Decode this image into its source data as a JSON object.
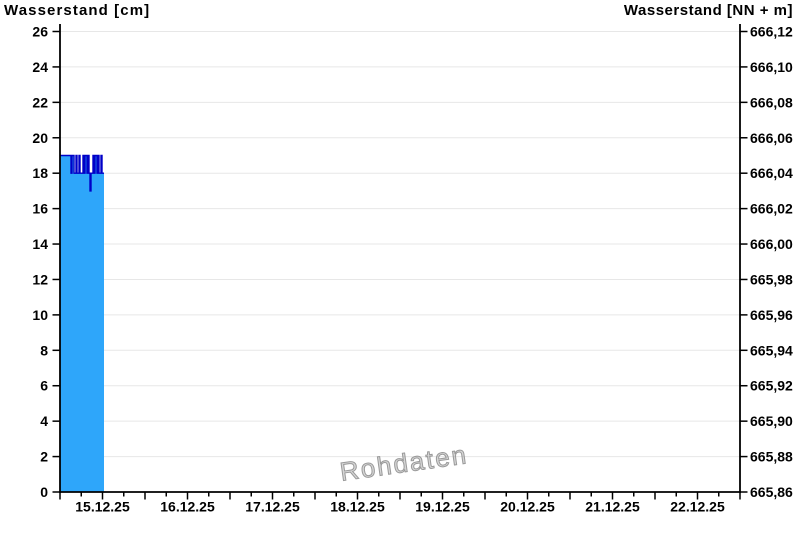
{
  "chart_data": {
    "type": "area",
    "title_left": "Wasserstand [cm]",
    "title_right": "Wasserstand [NN + m]",
    "watermark": "Rohdaten",
    "x_axis": {
      "labels": [
        "15.12.25",
        "16.12.25",
        "17.12.25",
        "18.12.25",
        "19.12.25",
        "20.12.25",
        "21.12.25",
        "22.12.25"
      ],
      "range_days": 8,
      "minor_tick_hours": 6,
      "major_tick_hours": 12,
      "grid": false
    },
    "y_left": {
      "title": "Wasserstand [cm]",
      "min": 0,
      "max": 26,
      "step": 2,
      "tick_labels": [
        "0",
        "2",
        "4",
        "6",
        "8",
        "10",
        "12",
        "14",
        "16",
        "18",
        "20",
        "22",
        "24",
        "26"
      ],
      "grid": true
    },
    "y_right": {
      "title": "Wasserstand [NN + m]",
      "min_label": "665,86",
      "max_label": "666,12",
      "step_label": "0,02",
      "tick_labels": [
        "665,86",
        "665,88",
        "665,90",
        "665,92",
        "665,94",
        "665,96",
        "665,98",
        "666,00",
        "666,02",
        "666,04",
        "666,06",
        "666,08",
        "666,10",
        "666,12"
      ]
    },
    "series": [
      {
        "name": "Wasserstand",
        "unit": "cm",
        "start_date": "15.12.25",
        "line_color": "#0000c8",
        "fill_color": "#2ea6fa",
        "points_t_hours_cm": [
          [
            0,
            19
          ],
          [
            3.11,
            19
          ],
          [
            3.11,
            18
          ],
          [
            3.39,
            18
          ],
          [
            3.39,
            19
          ],
          [
            3.95,
            19
          ],
          [
            3.95,
            18
          ],
          [
            4.52,
            18
          ],
          [
            4.52,
            19
          ],
          [
            4.8,
            19
          ],
          [
            4.8,
            18
          ],
          [
            5.36,
            18
          ],
          [
            5.36,
            19
          ],
          [
            5.65,
            19
          ],
          [
            5.65,
            18
          ],
          [
            6.49,
            18
          ],
          [
            6.49,
            19
          ],
          [
            6.78,
            19
          ],
          [
            6.78,
            18
          ],
          [
            7.06,
            18
          ],
          [
            7.06,
            19
          ],
          [
            7.62,
            19
          ],
          [
            7.62,
            18
          ],
          [
            7.91,
            18
          ],
          [
            7.91,
            19
          ],
          [
            8.19,
            19
          ],
          [
            8.19,
            18
          ],
          [
            8.47,
            18
          ],
          [
            8.47,
            17
          ],
          [
            8.75,
            17
          ],
          [
            8.75,
            18
          ],
          [
            9.32,
            18
          ],
          [
            9.32,
            19
          ],
          [
            9.6,
            19
          ],
          [
            9.6,
            18
          ],
          [
            9.88,
            18
          ],
          [
            9.88,
            19
          ],
          [
            10.45,
            19
          ],
          [
            10.45,
            18
          ],
          [
            10.73,
            18
          ],
          [
            10.73,
            19
          ],
          [
            11.01,
            19
          ],
          [
            11.01,
            18
          ],
          [
            11.58,
            18
          ],
          [
            11.58,
            19
          ],
          [
            11.86,
            19
          ],
          [
            11.86,
            18
          ],
          [
            12.42,
            18
          ]
        ]
      }
    ],
    "colors": {
      "grid": "#e7e7e7",
      "axis": "#000000",
      "background": "#ffffff",
      "watermark_stroke": "#8c8c8c"
    }
  }
}
